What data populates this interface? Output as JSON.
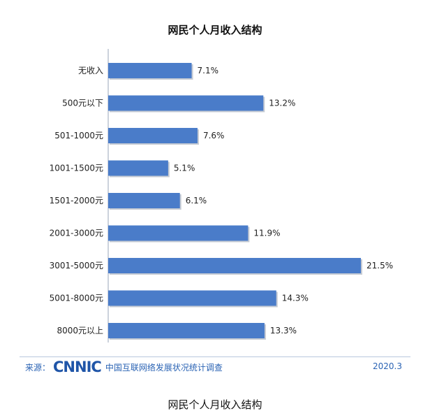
{
  "chart_data": {
    "type": "bar",
    "orientation": "horizontal",
    "title": "网民个人月收入结构",
    "categories": [
      "无收入",
      "500元以下",
      "501-1000元",
      "1001-1500元",
      "1501-2000元",
      "2001-3000元",
      "3001-5000元",
      "5001-8000元",
      "8000元以上"
    ],
    "values": [
      7.1,
      13.2,
      7.6,
      5.1,
      6.1,
      11.9,
      21.5,
      14.3,
      13.3
    ],
    "value_labels": [
      "7.1%",
      "13.2%",
      "7.6%",
      "5.1%",
      "6.1%",
      "11.9%",
      "21.5%",
      "14.3%",
      "13.3%"
    ],
    "unit": "%",
    "xlim": [
      0,
      21.5
    ],
    "grid": false,
    "bar_color": "#4a7cc9"
  },
  "source": {
    "label": "来源：",
    "logo_text": "CNNIC",
    "org": "中国互联网络发展状况统计调查",
    "date": "2020.3"
  },
  "caption": "网民个人月收入结构"
}
